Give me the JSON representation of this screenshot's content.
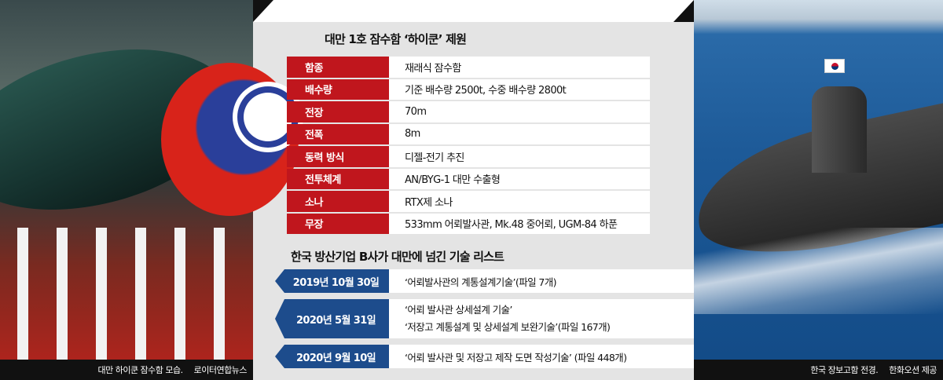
{
  "spec_table": {
    "title": "대만 1호 잠수함 ‘하이쿤’ 제원",
    "rows": [
      {
        "label": "함종",
        "value": "재래식 잠수함"
      },
      {
        "label": "배수량",
        "value": "기준 배수량 2500t, 수중 배수량 2800t"
      },
      {
        "label": "전장",
        "value": "70m"
      },
      {
        "label": "전폭",
        "value": "8m"
      },
      {
        "label": "동력 방식",
        "value": "디젤-전기 추진"
      },
      {
        "label": "전투체계",
        "value": "AN/BYG-1 대만 수출형"
      },
      {
        "label": "소나",
        "value": "RTX제 소나"
      },
      {
        "label": "무장",
        "value": "533mm 어뢰발사관, Mk.48 중어뢰, UGM-84 하푼"
      }
    ]
  },
  "tech_list": {
    "title": "한국 방산기업 B사가 대만에 넘긴 기술 리스트",
    "items": [
      {
        "date": "2019년 10월 30일",
        "lines": [
          "‘어뢰발사관의 계통설계기술’(파일 7개)"
        ]
      },
      {
        "date": "2020년 5월 31일",
        "lines": [
          "‘어뢰 발사관 상세설계 기술’",
          "‘저장고 계통설계 및 상세설계 보완기술’(파일 167개)"
        ]
      },
      {
        "date": "2020년 9월 10일",
        "lines": [
          "‘어뢰 발사관 및 저장고 제작 도면 작성기술’ (파일 448개)"
        ]
      }
    ]
  },
  "left_photo": {
    "caption": "대만 하이쿤 잠수함 모습.",
    "credit": "로이터연합뉴스"
  },
  "right_photo": {
    "caption": "한국 장보고함 전경.",
    "credit": "한화오션 제공"
  },
  "colors": {
    "label_red": "#c0161d",
    "date_blue": "#1d4c8c",
    "panel_gray": "#e4e4e4"
  }
}
